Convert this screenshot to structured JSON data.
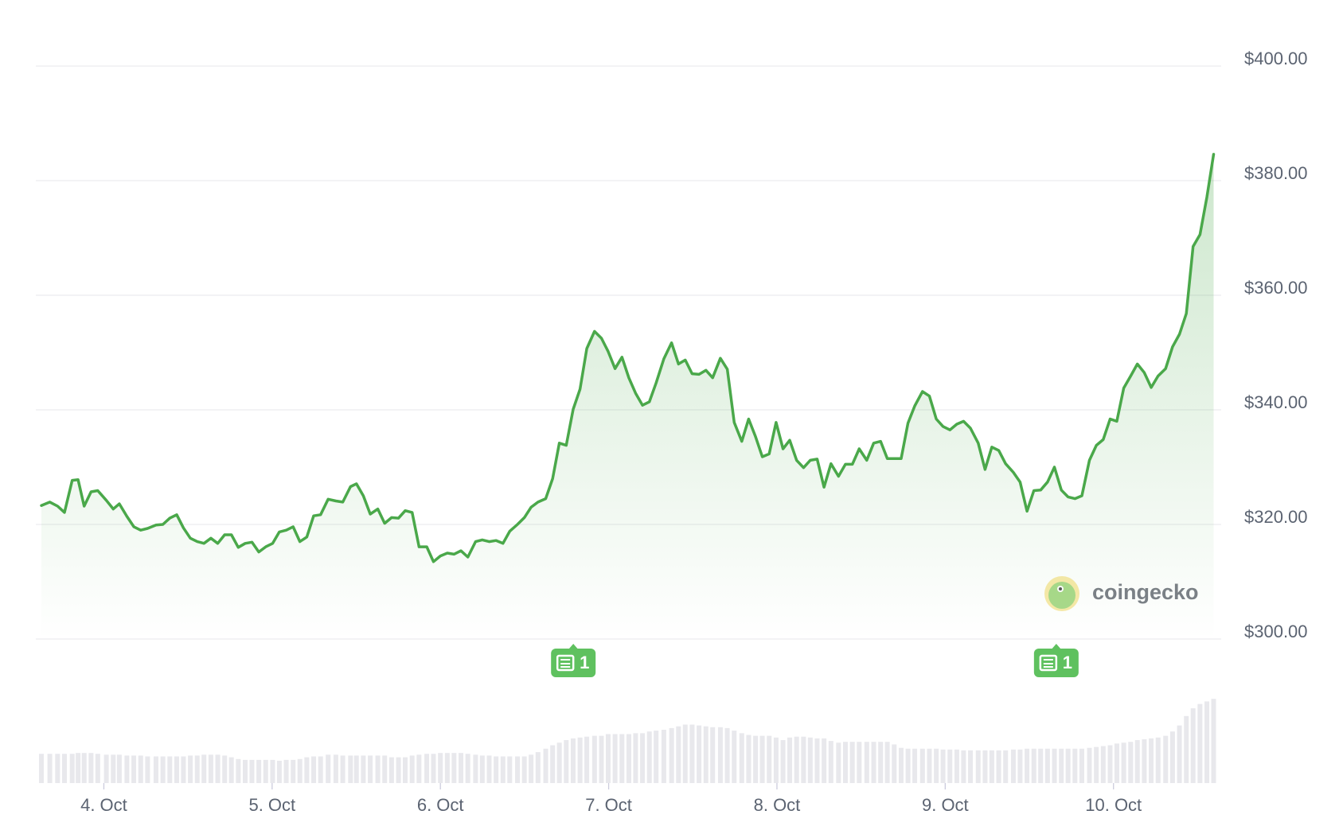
{
  "chart_data": {
    "type": "line",
    "color": "#4aa84a",
    "x": [
      3.629,
      3.679,
      3.725,
      3.766,
      3.812,
      3.847,
      3.883,
      3.924,
      3.964,
      4.015,
      4.056,
      4.092,
      4.137,
      4.178,
      4.219,
      4.26,
      4.31,
      4.351,
      4.392,
      4.433,
      4.473,
      4.514,
      4.555,
      4.595,
      4.636,
      4.677,
      4.718,
      4.758,
      4.799,
      4.84,
      4.88,
      4.921,
      4.962,
      5.003,
      5.043,
      5.084,
      5.125,
      5.165,
      5.206,
      5.247,
      5.288,
      5.333,
      5.379,
      5.42,
      5.466,
      5.501,
      5.542,
      5.583,
      5.628,
      5.669,
      5.71,
      5.751,
      5.791,
      5.832,
      5.873,
      5.919,
      5.959,
      6.0,
      6.041,
      6.081,
      6.122,
      6.163,
      6.209,
      6.249,
      6.29,
      6.331,
      6.372,
      6.412,
      6.458,
      6.499,
      6.539,
      6.58,
      6.626,
      6.667,
      6.707,
      6.748,
      6.789,
      6.83,
      6.87,
      6.916,
      6.957,
      6.997,
      7.038,
      7.079,
      7.12,
      7.16,
      7.201,
      7.242,
      7.282,
      7.328,
      7.374,
      7.415,
      7.455,
      7.496,
      7.537,
      7.578,
      7.618,
      7.664,
      7.705,
      7.746,
      7.791,
      7.832,
      7.873,
      7.913,
      7.954,
      7.995,
      8.036,
      8.076,
      8.117,
      8.158,
      8.198,
      8.239,
      8.28,
      8.321,
      8.366,
      8.407,
      8.448,
      8.489,
      8.534,
      8.575,
      8.616,
      8.656,
      8.697,
      8.738,
      8.779,
      8.819,
      8.865,
      8.906,
      8.947,
      8.987,
      9.028,
      9.069,
      9.109,
      9.15,
      9.196,
      9.237,
      9.277,
      9.318,
      9.359,
      9.405,
      9.445,
      9.486,
      9.527,
      9.567,
      9.608,
      9.649,
      9.69,
      9.73,
      9.771,
      9.812,
      9.857,
      9.898,
      9.939,
      9.98,
      10.02,
      10.061,
      10.102,
      10.142,
      10.183,
      10.224,
      10.265,
      10.31,
      10.351,
      10.392,
      10.433,
      10.473,
      10.514,
      10.555,
      10.595
    ],
    "values": [
      323.3,
      323.9,
      323.2,
      322.1,
      327.7,
      327.8,
      323.2,
      325.7,
      325.9,
      324.2,
      322.7,
      323.6,
      321.4,
      319.6,
      319.0,
      319.3,
      319.9,
      320.0,
      321.1,
      321.7,
      319.4,
      317.6,
      317.0,
      316.7,
      317.6,
      316.7,
      318.2,
      318.2,
      316.0,
      316.7,
      316.9,
      315.2,
      316.1,
      316.7,
      318.7,
      319.0,
      319.6,
      317.0,
      317.8,
      321.5,
      321.7,
      324.4,
      324.1,
      323.9,
      326.6,
      327.1,
      325.0,
      321.8,
      322.7,
      320.2,
      321.2,
      321.1,
      322.4,
      322.1,
      316.1,
      316.1,
      313.5,
      314.5,
      315.0,
      314.8,
      315.4,
      314.3,
      317.0,
      317.3,
      317.0,
      317.2,
      316.7,
      318.8,
      320.0,
      321.2,
      323.0,
      323.9,
      324.5,
      328.0,
      334.2,
      333.8,
      340.1,
      343.6,
      350.7,
      353.7,
      352.5,
      350.2,
      347.2,
      349.2,
      345.6,
      342.9,
      340.8,
      341.4,
      344.7,
      348.9,
      351.7,
      348.0,
      348.7,
      346.3,
      346.2,
      346.9,
      345.6,
      349.0,
      347.1,
      337.8,
      334.5,
      338.4,
      335.3,
      331.8,
      332.3,
      337.8,
      333.2,
      334.7,
      331.2,
      329.9,
      331.2,
      331.4,
      326.5,
      330.6,
      328.4,
      330.5,
      330.5,
      333.2,
      331.2,
      334.2,
      334.5,
      331.5,
      331.5,
      331.5,
      337.7,
      340.7,
      343.2,
      342.4,
      338.4,
      337.1,
      336.5,
      337.5,
      338.0,
      336.8,
      334.2,
      329.6,
      333.5,
      332.9,
      330.6,
      329.1,
      327.4,
      322.3,
      325.9,
      326.0,
      327.4,
      330.0,
      326.0,
      324.8,
      324.5,
      325.0,
      331.2,
      333.8,
      334.8,
      338.4,
      338.0,
      343.8,
      345.9,
      348.0,
      346.5,
      343.9,
      345.9,
      347.2,
      351.0,
      353.2,
      356.8,
      368.5,
      370.6,
      377.1,
      384.6
    ],
    "xlim": [
      3.61,
      10.64
    ],
    "xticks": [
      {
        "value": 4,
        "label": "4. Oct"
      },
      {
        "value": 5,
        "label": "5. Oct"
      },
      {
        "value": 6,
        "label": "6. Oct"
      },
      {
        "value": 7,
        "label": "7. Oct"
      },
      {
        "value": 8,
        "label": "8. Oct"
      },
      {
        "value": 9,
        "label": "9. Oct"
      },
      {
        "value": 10,
        "label": "10. Oct"
      }
    ],
    "ylim": [
      300,
      400
    ],
    "yticks": [
      {
        "value": 300,
        "label": "$300.00"
      },
      {
        "value": 320,
        "label": "$320.00"
      },
      {
        "value": 340,
        "label": "$340.00"
      },
      {
        "value": 360,
        "label": "$360.00"
      },
      {
        "value": 380,
        "label": "$380.00"
      },
      {
        "value": 400,
        "label": "$400.00"
      }
    ],
    "grid": true,
    "volume": {
      "color": "#e8e8ec",
      "ylim": [
        0,
        100
      ],
      "values": [
        34,
        34,
        34,
        34,
        34,
        35,
        35,
        35,
        34,
        33,
        33,
        33,
        32,
        32,
        32,
        31,
        31,
        31,
        31,
        31,
        31,
        32,
        32,
        33,
        33,
        33,
        32,
        30,
        28,
        27,
        27,
        27,
        27,
        27,
        26,
        27,
        27,
        28,
        30,
        31,
        31,
        33,
        33,
        32,
        32,
        32,
        32,
        32,
        32,
        32,
        30,
        30,
        30,
        32,
        33,
        34,
        34,
        35,
        35,
        35,
        35,
        34,
        33,
        32,
        32,
        31,
        31,
        31,
        31,
        31,
        33,
        36,
        40,
        44,
        47,
        50,
        52,
        53,
        54,
        55,
        55,
        57,
        57,
        57,
        57,
        58,
        58,
        60,
        61,
        62,
        64,
        66,
        68,
        68,
        67,
        66,
        65,
        65,
        64,
        61,
        58,
        56,
        55,
        55,
        55,
        53,
        50,
        53,
        54,
        54,
        53,
        52,
        52,
        49,
        47,
        48,
        48,
        48,
        48,
        48,
        48,
        48,
        45,
        41,
        40,
        40,
        40,
        40,
        40,
        39,
        39,
        39,
        38,
        38,
        38,
        38,
        38,
        38,
        38,
        39,
        39,
        40,
        40,
        40,
        40,
        40,
        40,
        40,
        40,
        40,
        41,
        42,
        43,
        44,
        46,
        47,
        48,
        50,
        51,
        52,
        53,
        55,
        60,
        67,
        78,
        87,
        92,
        95,
        98
      ]
    },
    "news_markers": [
      {
        "x": 6.79,
        "label": "1"
      },
      {
        "x": 9.66,
        "label": "1"
      }
    ],
    "watermark": "coingecko"
  }
}
